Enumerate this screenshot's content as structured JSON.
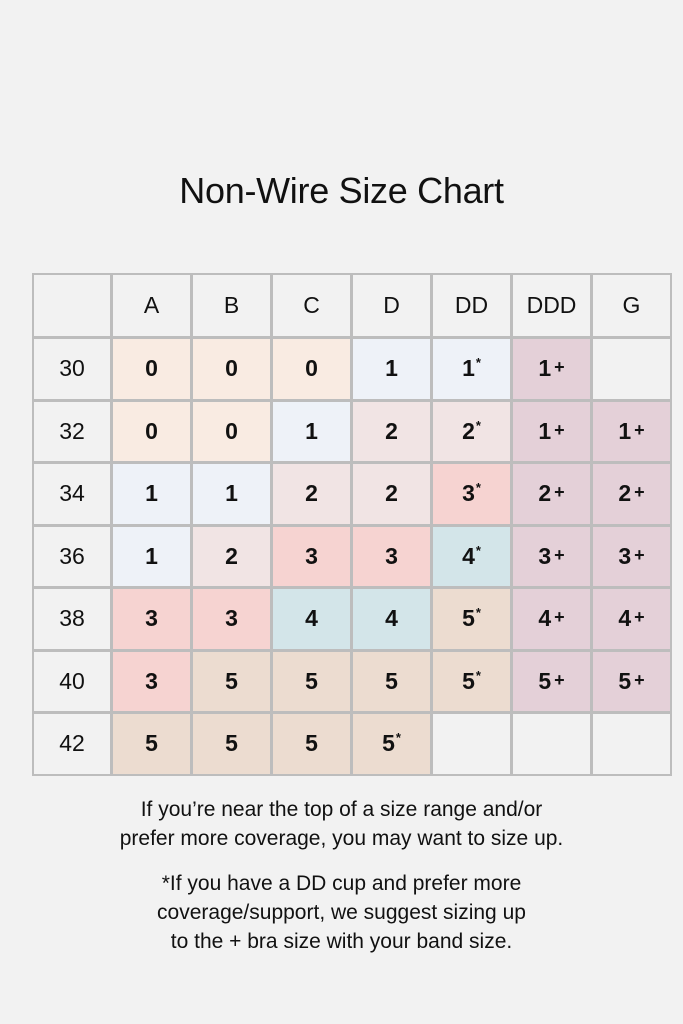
{
  "title": "Non-Wire Size Chart",
  "colors": {
    "background": "#f2f2f2",
    "border": "#bdbdbd",
    "size_0": "#f9ebe2",
    "size_1": "#eef2f8",
    "size_2": "#f1e4e4",
    "size_3": "#f6d3d1",
    "size_4": "#d3e5e9",
    "size_5": "#ecdcd0",
    "size_plus": "#e4d0d8"
  },
  "chart_data": {
    "type": "table",
    "title": "Non-Wire Size Chart",
    "columns": [
      "",
      "A",
      "B",
      "C",
      "D",
      "DD",
      "DDD",
      "G"
    ],
    "rows": [
      {
        "band": "30",
        "values": [
          "0",
          "0",
          "0",
          "1",
          "1*",
          "1+",
          ""
        ]
      },
      {
        "band": "32",
        "values": [
          "0",
          "0",
          "1",
          "2",
          "2*",
          "1+",
          "1+"
        ]
      },
      {
        "band": "34",
        "values": [
          "1",
          "1",
          "2",
          "2",
          "3*",
          "2+",
          "2+"
        ]
      },
      {
        "band": "36",
        "values": [
          "1",
          "2",
          "3",
          "3",
          "4*",
          "3+",
          "3+"
        ]
      },
      {
        "band": "38",
        "values": [
          "3",
          "3",
          "4",
          "4",
          "5*",
          "4+",
          "4+"
        ]
      },
      {
        "band": "40",
        "values": [
          "3",
          "5",
          "5",
          "5",
          "5*",
          "5+",
          "5+"
        ]
      },
      {
        "band": "42",
        "values": [
          "5",
          "5",
          "5",
          "5*",
          "",
          "",
          ""
        ]
      }
    ]
  },
  "notes": {
    "note1": [
      "If you’re near the top of a size range and/or",
      "prefer more coverage, you may want to size up."
    ],
    "note2": [
      "*If you have a DD cup and prefer more",
      "coverage/support, we suggest sizing up",
      "to the + bra size with your band size."
    ]
  }
}
